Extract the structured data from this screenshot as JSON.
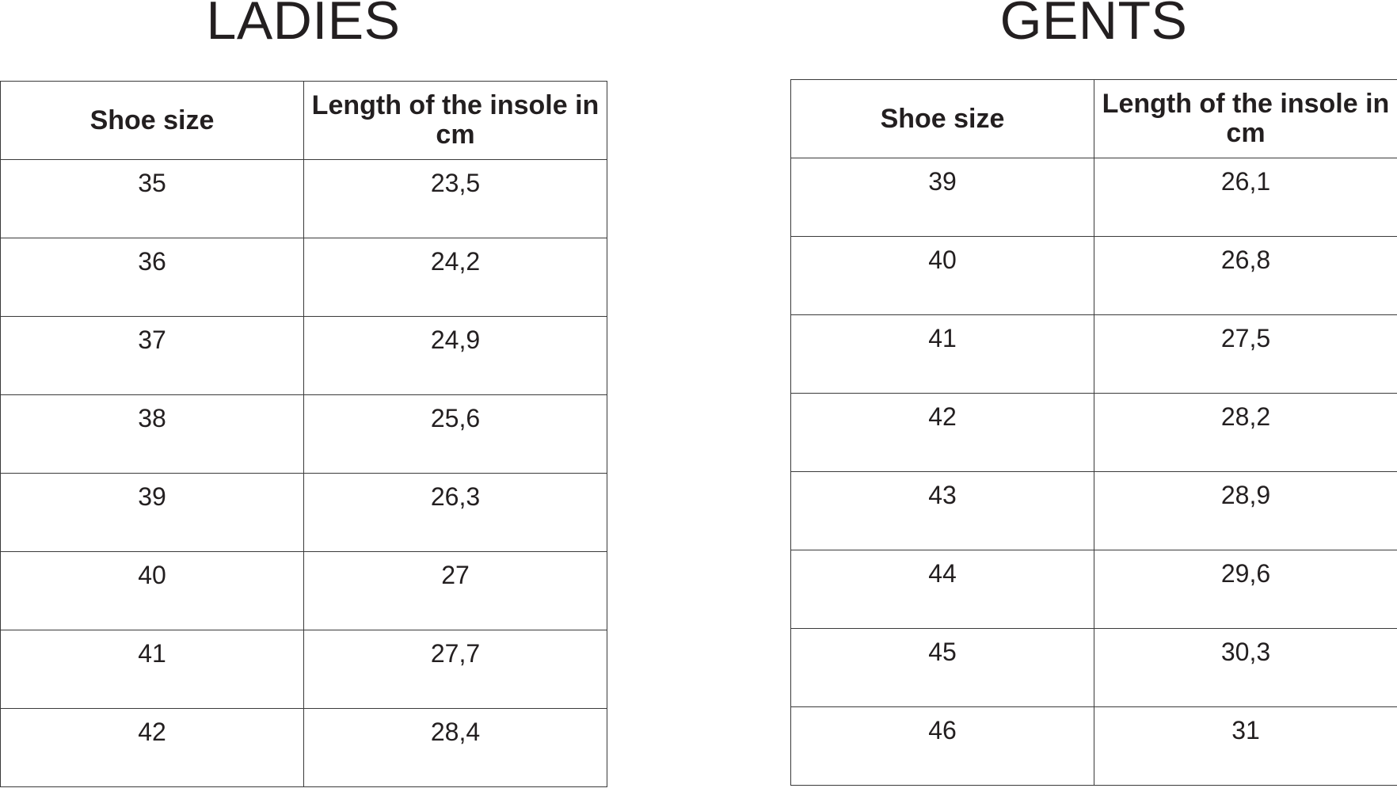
{
  "ladies": {
    "title": "LADIES",
    "headers": [
      "Shoe size",
      "Length of the insole in cm"
    ],
    "rows": [
      [
        "35",
        "23,5"
      ],
      [
        "36",
        "24,2"
      ],
      [
        "37",
        "24,9"
      ],
      [
        "38",
        "25,6"
      ],
      [
        "39",
        "26,3"
      ],
      [
        "40",
        "27"
      ],
      [
        "41",
        "27,7"
      ],
      [
        "42",
        "28,4"
      ]
    ]
  },
  "gents": {
    "title": "GENTS",
    "headers": [
      "Shoe size",
      "Length of the insole in cm"
    ],
    "rows": [
      [
        "39",
        "26,1"
      ],
      [
        "40",
        "26,8"
      ],
      [
        "41",
        "27,5"
      ],
      [
        "42",
        "28,2"
      ],
      [
        "43",
        "28,9"
      ],
      [
        "44",
        "29,6"
      ],
      [
        "45",
        "30,3"
      ],
      [
        "46",
        "31"
      ]
    ]
  }
}
